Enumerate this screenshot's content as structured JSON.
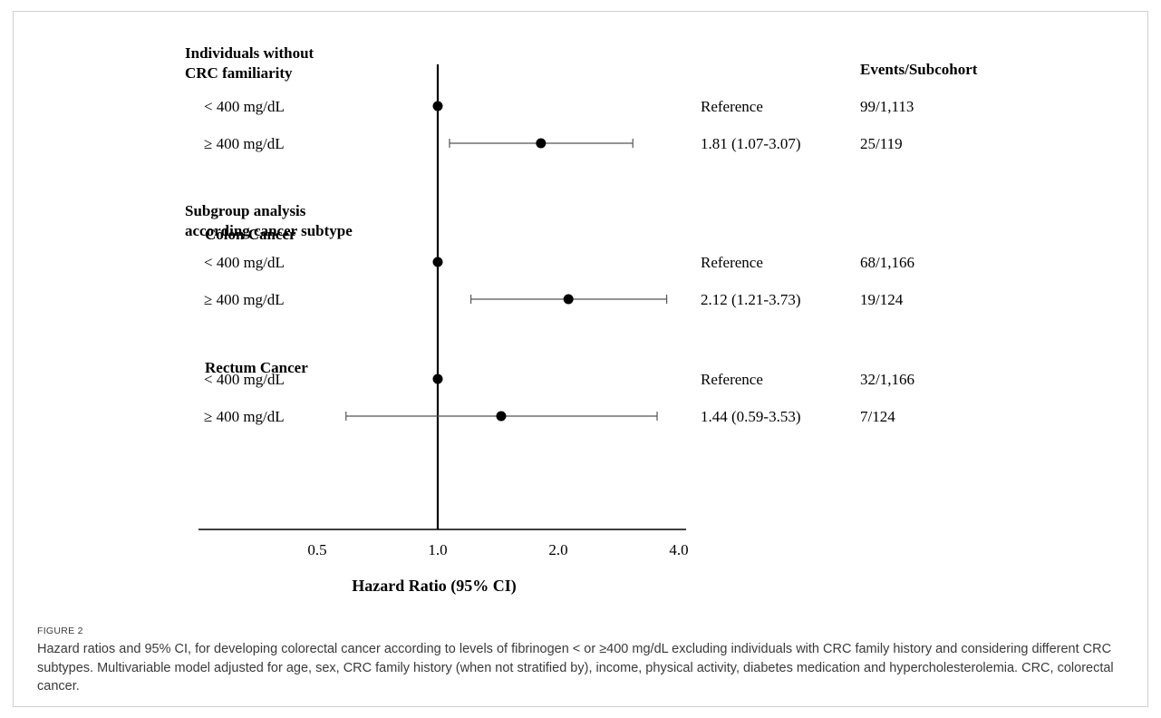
{
  "figure_label": "FIGURE 2",
  "caption": "Hazard ratios and 95% CI, for developing colorectal cancer according to levels of fibrinogen < or ≥400 mg/dL excluding individuals with CRC family history and considering different CRC subtypes. Multivariable model adjusted for age, sex, CRC family history (when not stratified by), income, physical activity, diabetes medication and hypercholesterolemia. CRC, colorectal cancer.",
  "column_header": "Events/Subcohort",
  "colors": {
    "text": "#000000",
    "whisker": "#555555",
    "caption": "#3a3a3a",
    "frame": "#cfcfcf"
  },
  "chart_data": {
    "type": "forest",
    "xlabel": "Hazard Ratio (95% CI)",
    "x_scale": "log",
    "x_ticks": [
      "0.5",
      "1.0",
      "2.0",
      "4.0"
    ],
    "xlim": [
      0.35,
      4.2
    ],
    "reference_line": 1.0,
    "headings": [
      {
        "row": 0,
        "lines": [
          "Individuals  without",
          "CRC familiarity"
        ]
      },
      {
        "row": 3,
        "lines": [
          "Subgroup analysis",
          "according cancer subtype"
        ]
      },
      {
        "row": 4,
        "lines": [
          "Colon Cancer"
        ]
      },
      {
        "row": 7,
        "lines": [
          "Rectum Cancer"
        ]
      }
    ],
    "rows": [
      {
        "row": 1,
        "label": "< 400 mg/dL",
        "hr": 1.0,
        "ci": null,
        "estimate": "Reference",
        "events": "99/1,113"
      },
      {
        "row": 2,
        "label": "≥ 400 mg/dL",
        "hr": 1.81,
        "ci": [
          1.07,
          3.07
        ],
        "estimate": "1.81 (1.07-3.07)",
        "events": "25/119"
      },
      {
        "row": 5,
        "label": "< 400 mg/dL",
        "hr": 1.0,
        "ci": null,
        "estimate": "Reference",
        "events": "68/1,166"
      },
      {
        "row": 6,
        "label": "≥ 400 mg/dL",
        "hr": 2.12,
        "ci": [
          1.21,
          3.73
        ],
        "estimate": "2.12 (1.21-3.73)",
        "events": "19/124"
      },
      {
        "row": 8,
        "label": "< 400 mg/dL",
        "hr": 1.0,
        "ci": null,
        "estimate": "Reference",
        "events": "32/1,166"
      },
      {
        "row": 9,
        "label": "≥ 400 mg/dL",
        "hr": 1.44,
        "ci": [
          0.59,
          3.53
        ],
        "estimate": "1.44 (0.59-3.53)",
        "events": "7/124"
      }
    ]
  }
}
